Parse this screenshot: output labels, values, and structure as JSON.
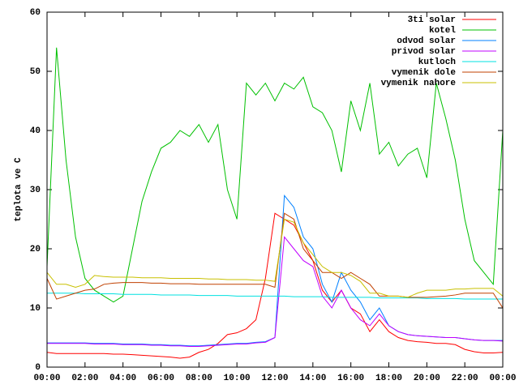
{
  "chart_data": {
    "type": "line",
    "ylabel": "teplota ve C",
    "x": [
      0,
      0.5,
      1,
      1.5,
      2,
      2.5,
      3,
      3.5,
      4,
      4.5,
      5,
      5.5,
      6,
      6.5,
      7,
      7.5,
      8,
      8.5,
      9,
      9.5,
      10,
      10.5,
      11,
      11.5,
      12,
      12.5,
      13,
      13.5,
      14,
      14.5,
      15,
      15.5,
      16,
      16.5,
      17,
      17.5,
      18,
      18.5,
      19,
      19.5,
      20,
      20.5,
      21,
      21.5,
      22,
      22.5,
      23,
      23.5,
      24
    ],
    "xlim": [
      0,
      24
    ],
    "xticks": [
      {
        "value": 0,
        "label": "00:00"
      },
      {
        "value": 2,
        "label": "02:00"
      },
      {
        "value": 4,
        "label": "04:00"
      },
      {
        "value": 6,
        "label": "06:00"
      },
      {
        "value": 8,
        "label": "08:00"
      },
      {
        "value": 10,
        "label": "10:00"
      },
      {
        "value": 12,
        "label": "12:00"
      },
      {
        "value": 14,
        "label": "14:00"
      },
      {
        "value": 16,
        "label": "16:00"
      },
      {
        "value": 18,
        "label": "18:00"
      },
      {
        "value": 20,
        "label": "20:00"
      },
      {
        "value": 22,
        "label": "22:00"
      },
      {
        "value": 24,
        "label": "00:00"
      }
    ],
    "ylim": [
      0,
      60
    ],
    "yticks": [
      0,
      10,
      20,
      30,
      40,
      50,
      60
    ],
    "legend": "top-right",
    "series": [
      {
        "name": "3ti solar",
        "color": "#ff0000",
        "values": [
          2.5,
          2.3,
          2.3,
          2.3,
          2.3,
          2.3,
          2.3,
          2.2,
          2.2,
          2.1,
          2.0,
          1.9,
          1.8,
          1.7,
          1.5,
          1.7,
          2.5,
          3,
          4,
          5.5,
          5.8,
          6.5,
          8,
          15,
          26,
          25,
          24,
          21,
          18,
          13,
          11,
          13,
          10,
          9,
          6,
          8,
          6,
          5,
          4.5,
          4.3,
          4.2,
          4,
          4,
          3.8,
          3,
          2.6,
          2.4,
          2.4,
          2.5
        ]
      },
      {
        "name": "kotel",
        "color": "#00c000",
        "values": [
          17,
          54,
          35,
          22,
          15,
          13,
          12,
          11,
          12,
          20,
          28,
          33,
          37,
          38,
          40,
          39,
          41,
          38,
          41,
          30,
          25,
          48,
          46,
          48,
          45,
          48,
          47,
          49,
          44,
          43,
          40,
          33,
          45,
          40,
          48,
          36,
          38,
          34,
          36,
          37,
          32,
          48,
          42,
          35,
          25,
          18,
          16,
          14,
          40
        ]
      },
      {
        "name": "odvod solar",
        "color": "#0080ff",
        "values": [
          4.1,
          4.1,
          4.1,
          4.1,
          4.1,
          4.0,
          4.0,
          4.0,
          3.9,
          3.9,
          3.9,
          3.8,
          3.8,
          3.7,
          3.7,
          3.6,
          3.6,
          3.7,
          3.8,
          3.9,
          4.0,
          4.0,
          4.2,
          4.3,
          5,
          29,
          27,
          22,
          20,
          14,
          11,
          16,
          13,
          11,
          8,
          10,
          7,
          6,
          5.5,
          5.3,
          5.2,
          5.1,
          5,
          5,
          4.8,
          4.6,
          4.5,
          4.5,
          4.5
        ]
      },
      {
        "name": "privod solar",
        "color": "#c000ff",
        "values": [
          4.0,
          4.0,
          4.0,
          4.0,
          4.0,
          3.9,
          3.9,
          3.9,
          3.8,
          3.8,
          3.8,
          3.7,
          3.7,
          3.6,
          3.6,
          3.5,
          3.5,
          3.6,
          3.7,
          3.8,
          3.9,
          3.9,
          4.1,
          4.2,
          5,
          22,
          20,
          18,
          17,
          12,
          10,
          13,
          10,
          8,
          7,
          9,
          7,
          6,
          5.5,
          5.3,
          5.2,
          5.1,
          5,
          5,
          4.8,
          4.6,
          4.5,
          4.5,
          4.4
        ]
      },
      {
        "name": "kutloch",
        "color": "#00e0e0",
        "values": [
          12.5,
          12.5,
          12.5,
          12.5,
          12.4,
          12.4,
          12.4,
          12.4,
          12.3,
          12.3,
          12.3,
          12.3,
          12.2,
          12.2,
          12.2,
          12.2,
          12.1,
          12.1,
          12.1,
          12.1,
          12,
          12,
          12,
          12,
          12,
          12,
          11.9,
          11.9,
          11.9,
          11.9,
          11.8,
          11.8,
          11.8,
          11.8,
          11.8,
          11.7,
          11.7,
          11.7,
          11.7,
          11.7,
          11.6,
          11.6,
          11.6,
          11.6,
          11.5,
          11.5,
          11.5,
          11.5,
          11.5
        ]
      },
      {
        "name": "vymenik dole",
        "color": "#c04000",
        "values": [
          15,
          11.5,
          12,
          12.5,
          13,
          13.2,
          14,
          14.2,
          14.3,
          14.3,
          14.3,
          14.2,
          14.2,
          14.1,
          14.1,
          14.1,
          14,
          14,
          14,
          14,
          14,
          14,
          14,
          14,
          13.5,
          26,
          25,
          20,
          18,
          16,
          16,
          15,
          16,
          15,
          14,
          12,
          12,
          12,
          11.8,
          11.8,
          11.8,
          11.9,
          12,
          12.2,
          12.5,
          12.5,
          12.5,
          12.5,
          10
        ]
      },
      {
        "name": "vymenik nahore",
        "color": "#c8c000",
        "values": [
          16,
          14,
          14,
          13.5,
          14,
          15.5,
          15.3,
          15.2,
          15.2,
          15.2,
          15.1,
          15.1,
          15.1,
          15,
          15,
          15,
          15,
          14.9,
          14.9,
          14.8,
          14.8,
          14.8,
          14.7,
          14.7,
          14.5,
          25,
          24.5,
          21,
          19,
          17,
          16,
          16,
          15.5,
          14.5,
          12.5,
          12.5,
          12,
          12,
          11.8,
          12.5,
          13,
          13,
          13,
          13.2,
          13.2,
          13.3,
          13.3,
          13.3,
          12
        ]
      }
    ]
  }
}
